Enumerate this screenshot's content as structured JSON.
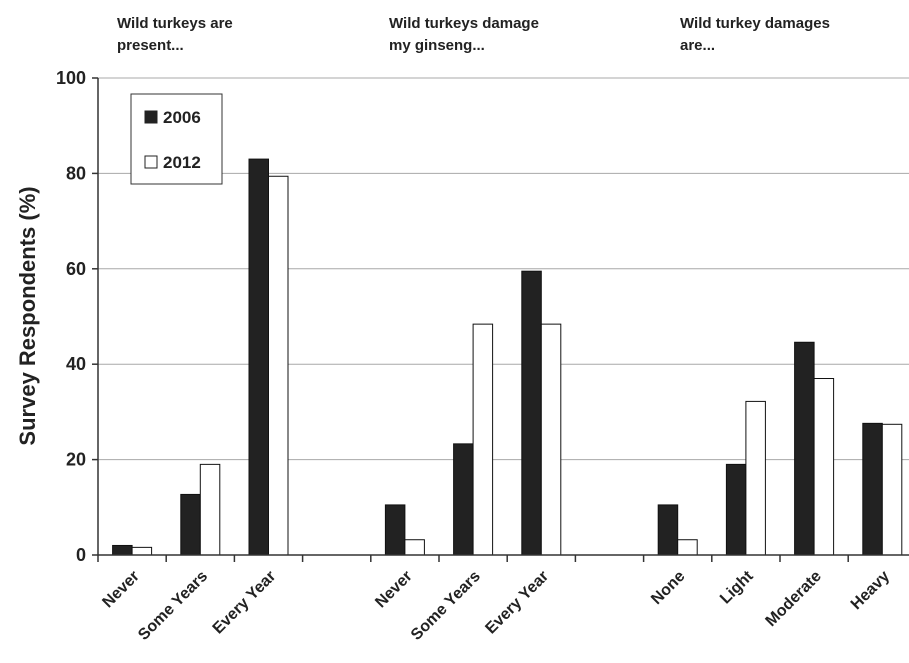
{
  "chart_data": {
    "type": "bar",
    "ylabel": "Survey Respondents (%)",
    "ylim": [
      0,
      100
    ],
    "yticks": [
      0,
      20,
      40,
      60,
      80,
      100
    ],
    "grid": true,
    "legend_position": "top-left",
    "series": [
      {
        "name": "2006",
        "color": "#222222"
      },
      {
        "name": "2012",
        "color": "#ffffff"
      }
    ],
    "groups": [
      {
        "title_lines": [
          "Wild turkeys are",
          "present..."
        ],
        "categories": [
          "Never",
          "Some Years",
          "Every Year"
        ],
        "values_2006": [
          2,
          12.7,
          83
        ],
        "values_2012": [
          1.6,
          19,
          79.4
        ]
      },
      {
        "title_lines": [
          "Wild turkeys damage",
          "my ginseng..."
        ],
        "categories": [
          "Never",
          "Some Years",
          "Every Year"
        ],
        "values_2006": [
          10.5,
          23.3,
          59.5
        ],
        "values_2012": [
          3.2,
          48.4,
          48.4
        ]
      },
      {
        "title_lines": [
          "Wild turkey damages",
          "are..."
        ],
        "categories": [
          "None",
          "Light",
          "Moderate",
          "Heavy"
        ],
        "values_2006": [
          10.5,
          19,
          44.6,
          27.6
        ],
        "values_2012": [
          3.2,
          32.2,
          37,
          27.4
        ]
      }
    ]
  }
}
